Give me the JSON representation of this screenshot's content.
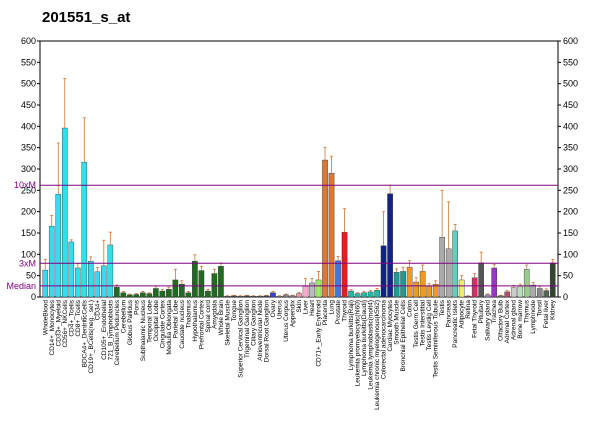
{
  "chart_data": {
    "type": "bar",
    "title": "201551_s_at",
    "categories": [
      "WholeBlood",
      "CD14+_Monocytes",
      "CD33+_Myeloid",
      "CD56+_NKCells",
      "CD4+_Tcells",
      "CD8+_Tcells",
      "BDCA4+_DentriticCells",
      "CD19+_BCells(neg._sel.)",
      "CD34+",
      "CD105+_Endothelial",
      "721_B_lymphoblasts",
      "Cerebellum Peduncles",
      "Cerebellum",
      "Globus Pallidus",
      "Pons",
      "Subthalamic Nucleus",
      "Temporal Lobe",
      "Occipital Lobe",
      "Cingulate Cortex",
      "Medulla Oblongata",
      "Parietal Lobe",
      "Caudate nucleus",
      "Thalamus",
      "Hypothalamus",
      "Prefrontal Cortex",
      "Spinal cord",
      "Amygdala",
      "Whole Brain",
      "Skeletal Muscle",
      "Tongue",
      "Superior Cervical Ganglion",
      "Trigeminal Ganglion",
      "Ciliary Ganglion",
      "Atrioventricular Node",
      "Dorsal Root Ganglion",
      "Ovary",
      "Uterus",
      "Uterus Corpus",
      "Appendix",
      "Skin",
      "Liver",
      "Heart",
      "CD71+_Early Erythroid",
      "Placenta",
      "Lung",
      "Prostate",
      "Thyroid",
      "Lymphoma burkitts(Raji)",
      "Leukemia promyelocytic(hl60)",
      "Lymphoma burkitts(Daudi)",
      "Leukemia lymphoblastic(molt4)",
      "Leukemia chronic myelogenous(k562)",
      "Colorectal adenocarcinoma",
      "Cardiac Myocytes",
      "Smooth Muscle",
      "Bronchial Epithelial Cells",
      "Colon",
      "Testis Germ Cell",
      "Testis Interstitial",
      "Testis Leydig Cell",
      "Testis Seminiferous Tubule",
      "Testis",
      "Pancreas",
      "Pancreatic Islets",
      "Adipocyte",
      "Retina",
      "Fetal Thyroid",
      "Pituitary",
      "Salivary gland",
      "Trachea",
      "Olfactory Bulb",
      "Adrenal Cortex",
      "Adrenal gland",
      "Bone marrow",
      "Thymus",
      "Lymphnode",
      "Tonsil",
      "Fetal liver",
      "Kidney"
    ],
    "values": [
      63,
      166,
      241,
      396,
      129,
      68,
      316,
      84,
      59,
      73,
      122,
      23,
      10,
      5,
      6,
      10,
      8,
      20,
      14,
      18,
      40,
      30,
      10,
      84,
      62,
      14,
      55,
      72,
      2,
      3,
      2,
      3,
      2,
      2,
      3,
      10,
      2,
      5,
      3,
      8,
      25,
      33,
      40,
      321,
      290,
      85,
      152,
      14,
      8,
      10,
      12,
      16,
      120,
      242,
      58,
      60,
      70,
      35,
      60,
      25,
      30,
      140,
      113,
      155,
      40,
      2,
      45,
      80,
      5,
      68,
      3,
      12,
      22,
      25,
      65,
      28,
      20,
      15,
      80
    ],
    "errors": [
      25,
      25,
      120,
      116,
      5,
      10,
      104,
      10,
      10,
      60,
      30,
      5,
      3,
      2,
      2,
      3,
      2,
      5,
      4,
      5,
      25,
      8,
      3,
      15,
      10,
      4,
      10,
      8,
      1,
      1,
      1,
      1,
      1,
      1,
      1,
      3,
      1,
      2,
      1,
      3,
      18,
      10,
      20,
      30,
      40,
      10,
      55,
      3,
      2,
      3,
      3,
      4,
      80,
      20,
      8,
      10,
      15,
      10,
      15,
      6,
      8,
      110,
      110,
      15,
      10,
      1,
      10,
      25,
      2,
      8,
      1,
      3,
      5,
      5,
      10,
      6,
      5,
      4,
      8
    ],
    "colors": [
      "#33ddee",
      "#33ddee",
      "#33ddee",
      "#33ddee",
      "#33ddee",
      "#33ddee",
      "#33ddee",
      "#33ddee",
      "#33ddee",
      "#33ddee",
      "#33ddee",
      "#1f6b1f",
      "#1f6b1f",
      "#1f6b1f",
      "#1f6b1f",
      "#1f6b1f",
      "#1f6b1f",
      "#1f6b1f",
      "#1f6b1f",
      "#1f6b1f",
      "#1f6b1f",
      "#1f6b1f",
      "#1f6b1f",
      "#1f6b1f",
      "#1f6b1f",
      "#1f6b1f",
      "#1f6b1f",
      "#1f6b1f",
      "#444444",
      "#444444",
      "#444444",
      "#444444",
      "#444444",
      "#444444",
      "#444444",
      "#3344cc",
      "#888888",
      "#888888",
      "#888888",
      "#ee99aa",
      "#ffaacc",
      "#bbbbbb",
      "#99ee66",
      "#dd7733",
      "#dd7733",
      "#4477dd",
      "#dd2222",
      "#22bbaa",
      "#22bbaa",
      "#22bbaa",
      "#22bbaa",
      "#22bbaa",
      "#112288",
      "#112288",
      "#229999",
      "#229999",
      "#ee9922",
      "#ee9922",
      "#ee9922",
      "#ee9922",
      "#ee9922",
      "#aaaaaa",
      "#aaaaaa",
      "#66ccbb",
      "#eeee66",
      "#cc3366",
      "#cc3366",
      "#555555",
      "#aa88cc",
      "#9933cc",
      "#777777",
      "#aa5566",
      "#cccccc",
      "#bbddbb",
      "#99cc88",
      "#aaaaaa",
      "#888888",
      "#556655",
      "#334433"
    ],
    "ylim": [
      0,
      600
    ],
    "yticks": [
      0,
      50,
      100,
      150,
      200,
      250,
      300,
      350,
      400,
      450,
      500,
      550,
      600
    ],
    "reference_lines": [
      {
        "label": "10xM",
        "value": 262
      },
      {
        "label": "3xM",
        "value": 79
      },
      {
        "label": "Median",
        "value": 26
      }
    ],
    "reference_color": "#800080"
  }
}
